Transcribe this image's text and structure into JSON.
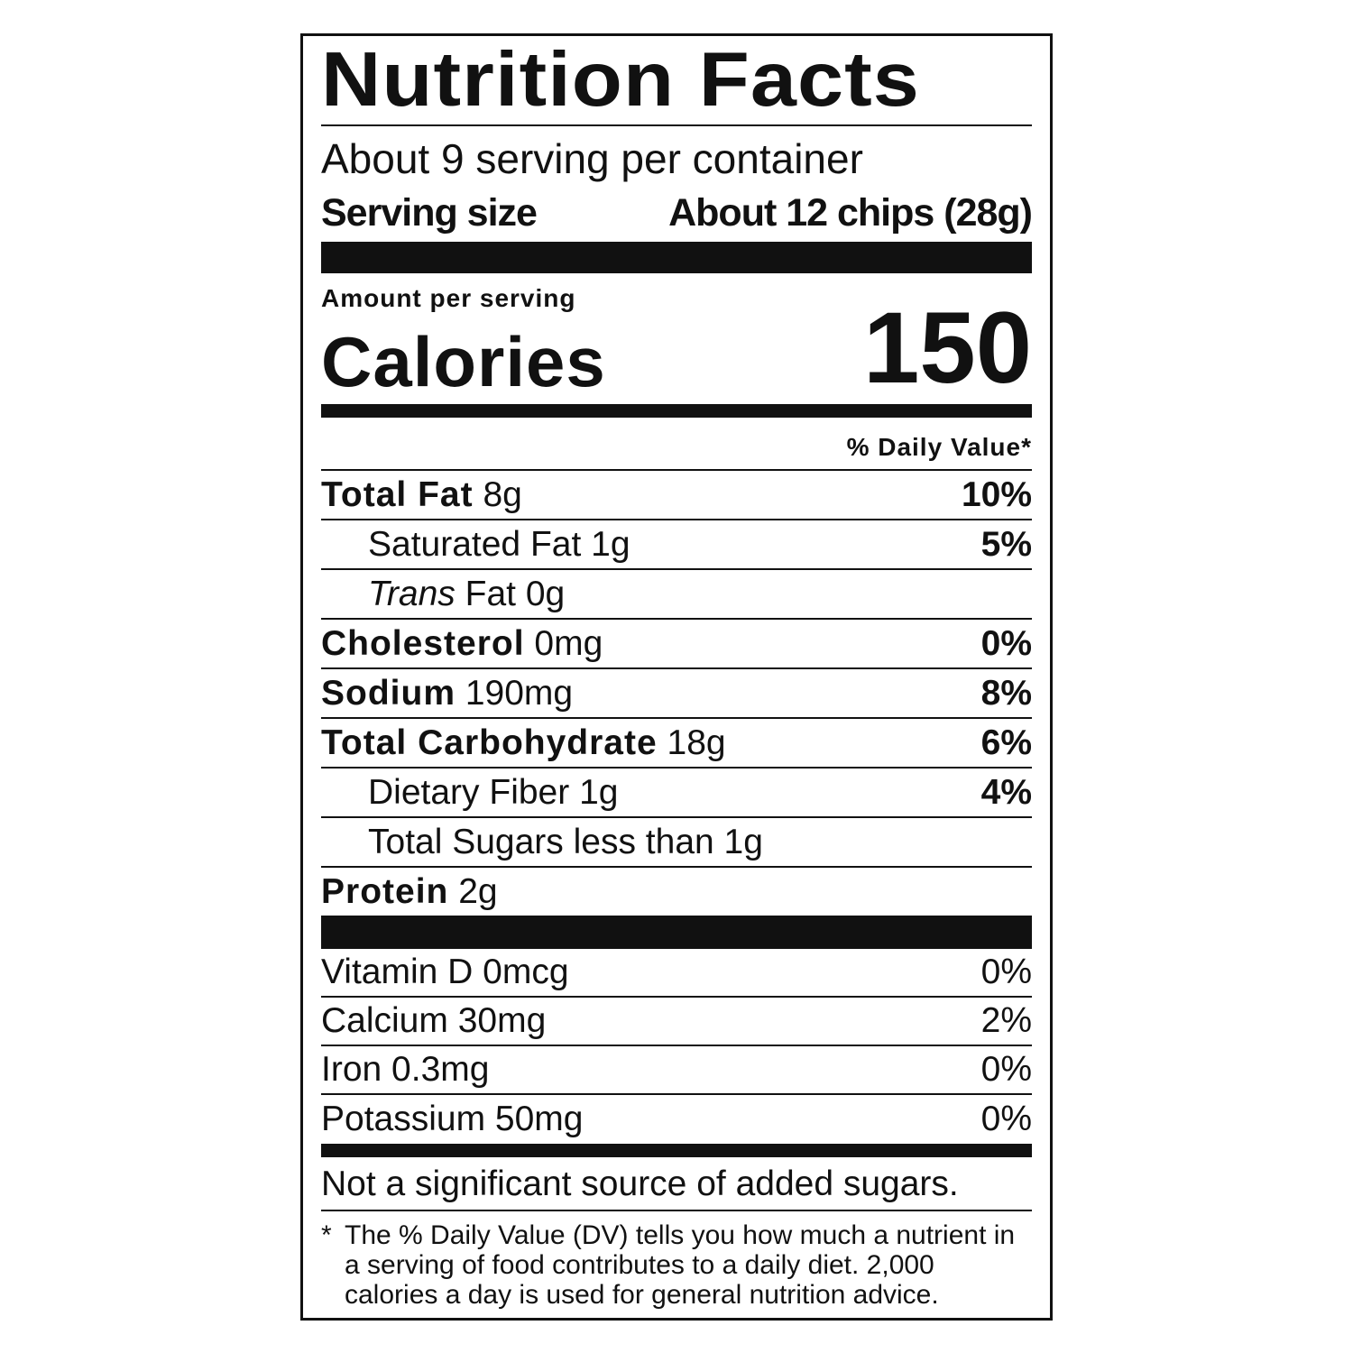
{
  "title": "Nutrition Facts",
  "servings_per_container": "About 9 serving per container",
  "serving_size": {
    "label": "Serving size",
    "value": "About 12 chips (28g)"
  },
  "amount_per_serving": "Amount per serving",
  "calories": {
    "label": "Calories",
    "value": "150"
  },
  "dv_header": "% Daily Value*",
  "nutrients": [
    {
      "name": "Total Fat",
      "amount": "8g",
      "dv": "10%"
    },
    {
      "name": "Saturated Fat",
      "amount": "1g",
      "dv": "5%"
    },
    {
      "name": "Trans",
      "suffix": "Fat 0g",
      "dv": ""
    },
    {
      "name": "Cholesterol",
      "amount": "0mg",
      "dv": "0%"
    },
    {
      "name": "Sodium",
      "amount": "190mg",
      "dv": "8%"
    },
    {
      "name": "Total Carbohydrate",
      "amount": "18g",
      "dv": "6%"
    },
    {
      "name": "Dietary Fiber",
      "amount": "1g",
      "dv": "4%"
    },
    {
      "name": "Total Sugars less than 1g",
      "dv": ""
    },
    {
      "name": "Protein",
      "amount": "2g"
    }
  ],
  "vitamins": [
    {
      "label": "Vitamin D 0mcg",
      "dv": "0%"
    },
    {
      "label": "Calcium 30mg",
      "dv": "2%"
    },
    {
      "label": "Iron 0.3mg",
      "dv": "0%"
    },
    {
      "label": "Potassium 50mg",
      "dv": "0%"
    }
  ],
  "added_sugars_note": "Not a significant source of added sugars.",
  "footnote": {
    "marker": "*",
    "text": "The % Daily Value (DV) tells you how much a nutrient in a serving of food contributes to a daily diet. 2,000 calories a day is used for general nutrition advice."
  }
}
